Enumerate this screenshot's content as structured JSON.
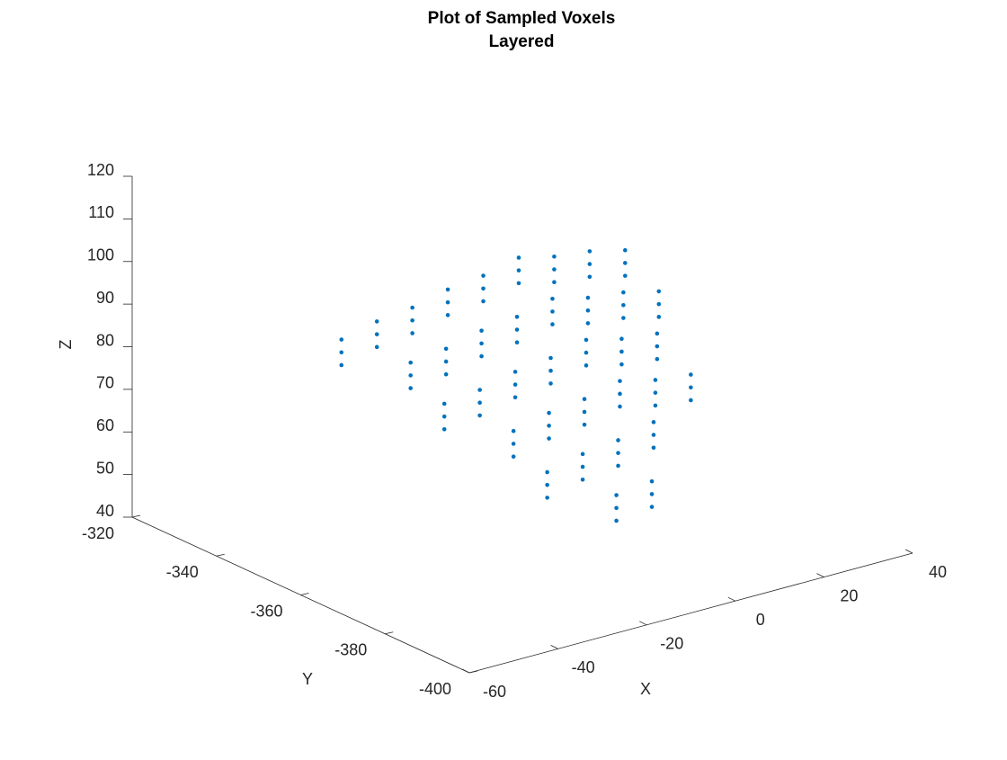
{
  "chart_data": {
    "type": "scatter3d",
    "title": "Plot of Sampled Voxels",
    "subtitle": "Layered",
    "xlabel": "X",
    "ylabel": "Y",
    "zlabel": "Z",
    "xlim": [
      -60,
      40
    ],
    "xticks": [
      -60,
      -40,
      -20,
      0,
      20,
      40
    ],
    "ylim": [
      -400,
      -320
    ],
    "yticks": [
      -400,
      -380,
      -360,
      -340,
      -320
    ],
    "zlim": [
      40,
      120
    ],
    "zticks": [
      40,
      50,
      60,
      70,
      80,
      90,
      100,
      110,
      120
    ],
    "series": [
      {
        "color": "#0072bd",
        "x": [
          -28,
          -28,
          -28,
          -20,
          -20,
          -20,
          -20,
          -20,
          -20,
          -20,
          -20,
          -20,
          -12,
          -12,
          -12,
          -12,
          -12,
          -12,
          -12,
          -12,
          -12,
          -12,
          -12,
          -12,
          -12,
          -12,
          -12,
          -4,
          -4,
          -4,
          -4,
          -4,
          -4,
          -4,
          -4,
          -4,
          -4,
          -4,
          -4,
          -4,
          -4,
          -4,
          -4,
          -4,
          -4,
          4,
          4,
          4,
          4,
          4,
          4,
          4,
          4,
          4,
          4,
          4,
          4,
          4,
          4,
          4,
          4,
          4,
          4,
          12,
          12,
          12,
          12,
          12,
          12,
          12,
          12,
          12,
          12,
          12,
          12,
          12,
          12,
          12,
          20,
          20,
          20,
          20,
          20,
          20,
          20,
          20,
          20,
          20,
          20,
          20,
          28,
          28,
          28,
          28,
          28,
          28,
          28,
          28,
          28,
          28,
          28,
          28,
          36,
          36,
          36,
          36,
          36,
          36
        ],
        "y": [
          -336,
          -336,
          -336,
          -336,
          -336,
          -336,
          -344,
          -344,
          -344,
          -352,
          -352,
          -352,
          -336,
          -336,
          -336,
          -344,
          -344,
          -344,
          -352,
          -352,
          -352,
          -360,
          -360,
          -360,
          -368,
          -368,
          -368,
          -336,
          -336,
          -336,
          -344,
          -344,
          -344,
          -352,
          -352,
          -352,
          -360,
          -360,
          -360,
          -368,
          -368,
          -368,
          -376,
          -376,
          -376,
          -336,
          -336,
          -336,
          -344,
          -344,
          -344,
          -352,
          -352,
          -352,
          -360,
          -360,
          -360,
          -368,
          -368,
          -368,
          -376,
          -376,
          -376,
          -336,
          -336,
          -336,
          -344,
          -344,
          -344,
          -352,
          -352,
          -352,
          -360,
          -360,
          -360,
          -368,
          -368,
          -368,
          -336,
          -336,
          -336,
          -344,
          -344,
          -344,
          -352,
          -352,
          -352,
          -360,
          -360,
          -360,
          -336,
          -336,
          -336,
          -344,
          -344,
          -344,
          -352,
          -352,
          -352,
          -360,
          -360,
          -360,
          -336,
          -336,
          -336,
          -344,
          -344,
          -344
        ],
        "z": [
          80,
          77,
          74,
          82,
          79,
          76,
          76,
          73,
          70,
          70,
          67,
          64,
          83,
          80,
          77,
          77,
          74,
          71,
          71,
          68,
          65,
          65,
          62,
          59,
          59,
          56,
          53,
          85,
          82,
          79,
          79,
          76,
          73,
          73,
          70,
          67,
          67,
          64,
          61,
          61,
          58,
          55,
          55,
          52,
          49,
          86,
          83,
          80,
          80,
          77,
          74,
          74,
          71,
          68,
          68,
          65,
          62,
          62,
          59,
          56,
          56,
          53,
          50,
          88,
          85,
          82,
          82,
          79,
          76,
          76,
          73,
          70,
          70,
          67,
          64,
          64,
          61,
          58,
          86,
          83,
          80,
          80,
          77,
          74,
          74,
          71,
          68,
          68,
          65,
          62,
          85,
          82,
          79,
          79,
          76,
          73,
          73,
          70,
          67,
          67,
          64,
          61,
          83,
          80,
          77,
          77,
          74,
          71
        ]
      }
    ]
  }
}
